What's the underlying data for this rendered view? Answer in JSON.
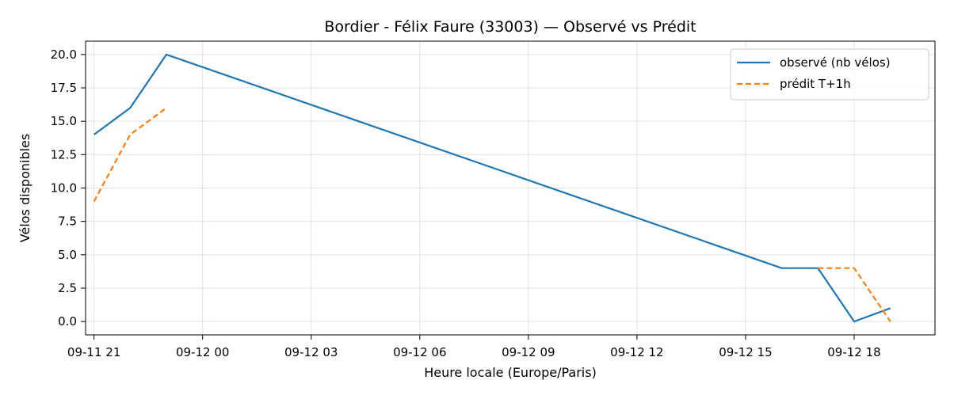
{
  "chart_data": {
    "type": "line",
    "title": "Bordier - Félix Faure (33003) — Observé vs Prédit",
    "xlabel": "Heure locale (Europe/Paris)",
    "ylabel": "Vélos disponibles",
    "x_ticks": [
      "09-11 21",
      "09-12 00",
      "09-12 03",
      "09-12 06",
      "09-12 09",
      "09-12 12",
      "09-12 15",
      "09-12 18"
    ],
    "y_ticks": [
      "0.0",
      "2.5",
      "5.0",
      "7.5",
      "10.0",
      "12.5",
      "15.0",
      "17.5",
      "20.0"
    ],
    "xlim": [
      "2023-09-11 20:46",
      "2023-09-12 20:14"
    ],
    "ylim": [
      -1.0,
      21.0
    ],
    "grid": true,
    "legend_position": "top-right",
    "series": [
      {
        "name": "observé (nb vélos)",
        "color": "#1f77b4",
        "style": "solid",
        "points": [
          {
            "x": "2023-09-11 21:00",
            "y": 14
          },
          {
            "x": "2023-09-11 22:00",
            "y": 16
          },
          {
            "x": "2023-09-11 23:00",
            "y": 20
          },
          {
            "x": "2023-09-12 16:00",
            "y": 4
          },
          {
            "x": "2023-09-12 17:00",
            "y": 4
          },
          {
            "x": "2023-09-12 18:00",
            "y": 0
          },
          {
            "x": "2023-09-12 19:00",
            "y": 1
          }
        ]
      },
      {
        "name": "prédit T+1h",
        "color": "#ff7f0e",
        "style": "dashed",
        "segments": [
          [
            {
              "x": "2023-09-11 21:00",
              "y": 9
            },
            {
              "x": "2023-09-11 22:00",
              "y": 14
            },
            {
              "x": "2023-09-11 23:00",
              "y": 16
            }
          ],
          [
            {
              "x": "2023-09-12 17:00",
              "y": 4
            },
            {
              "x": "2023-09-12 18:00",
              "y": 4
            },
            {
              "x": "2023-09-12 19:00",
              "y": 0
            }
          ]
        ]
      }
    ]
  }
}
